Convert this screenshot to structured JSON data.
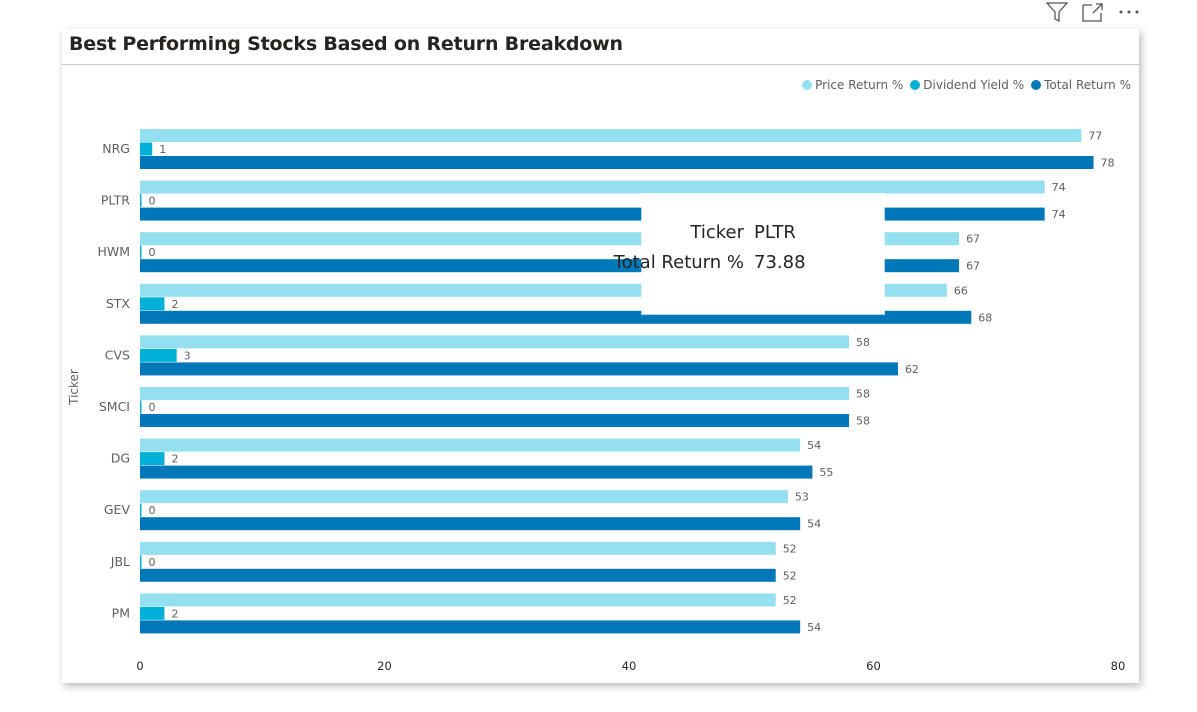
{
  "toolbar": {
    "filter_icon": "filter-icon",
    "focus_icon": "focus-mode-icon",
    "more_icon": "more-options-icon"
  },
  "title": "Best Performing Stocks Based on Return Breakdown",
  "tooltip": {
    "rows": [
      {
        "key": "Ticker",
        "value": "PLTR"
      },
      {
        "key": "Total Return %",
        "value": "73.88"
      }
    ]
  },
  "chart_data": {
    "type": "bar",
    "orientation": "horizontal",
    "title": "Best Performing Stocks Based on Return Breakdown",
    "ylabel": "Ticker",
    "xlabel": "",
    "xlim": [
      0,
      80
    ],
    "xticks": [
      0,
      20,
      40,
      60,
      80
    ],
    "legend_position": "top-right",
    "categories": [
      "NRG",
      "PLTR",
      "HWM",
      "STX",
      "CVS",
      "SMCI",
      "DG",
      "GEV",
      "JBL",
      "PM"
    ],
    "series": [
      {
        "name": "Price Return %",
        "color": "#94DFF0",
        "values": [
          77,
          74,
          67,
          66,
          58,
          58,
          54,
          53,
          52,
          52
        ]
      },
      {
        "name": "Dividend Yield %",
        "color": "#00B0D6",
        "values": [
          1,
          0,
          0,
          2,
          3,
          0,
          2,
          0,
          0,
          2
        ]
      },
      {
        "name": "Total Return %",
        "color": "#0077B8",
        "values": [
          78,
          74,
          67,
          68,
          62,
          58,
          55,
          54,
          52,
          54
        ]
      }
    ],
    "grid": false
  }
}
